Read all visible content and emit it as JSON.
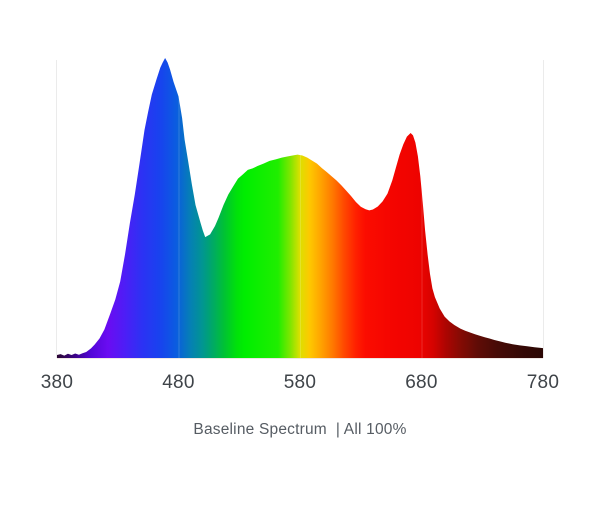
{
  "chart_data": {
    "type": "area",
    "title": "",
    "caption": "Baseline Spectrum  | All 100%",
    "xlabel": "",
    "ylabel": "",
    "x_min": 380,
    "x_max": 780,
    "x_ticks": [
      "380",
      "480",
      "580",
      "680",
      "780"
    ],
    "y_axis_visible": false,
    "grid": "faint vertical lines at interior ticks",
    "series": [
      {
        "name": "Baseline Spectrum All 100%",
        "unit": "relative intensity (0-1), x = wavelength nm",
        "points": [
          [
            380,
            0.01
          ],
          [
            383,
            0.013
          ],
          [
            386,
            0.008
          ],
          [
            389,
            0.014
          ],
          [
            392,
            0.01
          ],
          [
            395,
            0.015
          ],
          [
            398,
            0.011
          ],
          [
            401,
            0.016
          ],
          [
            404,
            0.02
          ],
          [
            408,
            0.032
          ],
          [
            411,
            0.045
          ],
          [
            415,
            0.065
          ],
          [
            419,
            0.095
          ],
          [
            424,
            0.15
          ],
          [
            428,
            0.195
          ],
          [
            432,
            0.255
          ],
          [
            436,
            0.345
          ],
          [
            440,
            0.45
          ],
          [
            444,
            0.545
          ],
          [
            448,
            0.65
          ],
          [
            452,
            0.76
          ],
          [
            455,
            0.82
          ],
          [
            458,
            0.878
          ],
          [
            462,
            0.93
          ],
          [
            465,
            0.968
          ],
          [
            467,
            0.985
          ],
          [
            469,
            1.0
          ],
          [
            471,
            0.985
          ],
          [
            473,
            0.962
          ],
          [
            476,
            0.92
          ],
          [
            480,
            0.872
          ],
          [
            483,
            0.8
          ],
          [
            485,
            0.728
          ],
          [
            488,
            0.655
          ],
          [
            491,
            0.578
          ],
          [
            494,
            0.51
          ],
          [
            498,
            0.452
          ],
          [
            500,
            0.425
          ],
          [
            502,
            0.403
          ],
          [
            506,
            0.412
          ],
          [
            510,
            0.44
          ],
          [
            513,
            0.468
          ],
          [
            517,
            0.51
          ],
          [
            521,
            0.545
          ],
          [
            525,
            0.572
          ],
          [
            529,
            0.598
          ],
          [
            533,
            0.612
          ],
          [
            537,
            0.627
          ],
          [
            541,
            0.632
          ],
          [
            545,
            0.64
          ],
          [
            550,
            0.648
          ],
          [
            555,
            0.657
          ],
          [
            560,
            0.662
          ],
          [
            565,
            0.668
          ],
          [
            570,
            0.672
          ],
          [
            575,
            0.676
          ],
          [
            578,
            0.678
          ],
          [
            582,
            0.675
          ],
          [
            586,
            0.668
          ],
          [
            590,
            0.658
          ],
          [
            594,
            0.648
          ],
          [
            598,
            0.633
          ],
          [
            602,
            0.62
          ],
          [
            606,
            0.606
          ],
          [
            610,
            0.592
          ],
          [
            614,
            0.576
          ],
          [
            618,
            0.558
          ],
          [
            622,
            0.54
          ],
          [
            626,
            0.52
          ],
          [
            630,
            0.504
          ],
          [
            634,
            0.496
          ],
          [
            637,
            0.492
          ],
          [
            640,
            0.495
          ],
          [
            644,
            0.505
          ],
          [
            648,
            0.522
          ],
          [
            652,
            0.548
          ],
          [
            656,
            0.592
          ],
          [
            659,
            0.636
          ],
          [
            662,
            0.678
          ],
          [
            665,
            0.712
          ],
          [
            668,
            0.738
          ],
          [
            671,
            0.75
          ],
          [
            673,
            0.742
          ],
          [
            675,
            0.718
          ],
          [
            677,
            0.672
          ],
          [
            679,
            0.606
          ],
          [
            681,
            0.52
          ],
          [
            683,
            0.425
          ],
          [
            685,
            0.345
          ],
          [
            687,
            0.28
          ],
          [
            689,
            0.232
          ],
          [
            691,
            0.203
          ],
          [
            695,
            0.165
          ],
          [
            699,
            0.138
          ],
          [
            703,
            0.122
          ],
          [
            707,
            0.11
          ],
          [
            712,
            0.098
          ],
          [
            716,
            0.091
          ],
          [
            720,
            0.085
          ],
          [
            724,
            0.079
          ],
          [
            728,
            0.074
          ],
          [
            732,
            0.069
          ],
          [
            736,
            0.065
          ],
          [
            740,
            0.06
          ],
          [
            745,
            0.055
          ],
          [
            749,
            0.051
          ],
          [
            755,
            0.046
          ],
          [
            761,
            0.042
          ],
          [
            767,
            0.039
          ],
          [
            773,
            0.036
          ],
          [
            780,
            0.033
          ]
        ]
      }
    ],
    "spectral_gradient": [
      {
        "wavelength": 380,
        "color": "#2b0733"
      },
      {
        "wavelength": 395,
        "color": "#3a0288"
      },
      {
        "wavelength": 408,
        "color": "#5306d8"
      },
      {
        "wavelength": 422,
        "color": "#6a0cf2"
      },
      {
        "wavelength": 436,
        "color": "#4d1ef6"
      },
      {
        "wavelength": 450,
        "color": "#2c32f4"
      },
      {
        "wavelength": 465,
        "color": "#1843ee"
      },
      {
        "wavelength": 478,
        "color": "#0b5ce0"
      },
      {
        "wavelength": 490,
        "color": "#0580b4"
      },
      {
        "wavelength": 500,
        "color": "#019690"
      },
      {
        "wavelength": 508,
        "color": "#00a966"
      },
      {
        "wavelength": 518,
        "color": "#00c332"
      },
      {
        "wavelength": 528,
        "color": "#00e20a"
      },
      {
        "wavelength": 535,
        "color": "#00ee00"
      },
      {
        "wavelength": 562,
        "color": "#20ee00"
      },
      {
        "wavelength": 572,
        "color": "#7fe600"
      },
      {
        "wavelength": 580,
        "color": "#dce000"
      },
      {
        "wavelength": 588,
        "color": "#fec800"
      },
      {
        "wavelength": 597,
        "color": "#ffa400"
      },
      {
        "wavelength": 607,
        "color": "#ff7800"
      },
      {
        "wavelength": 616,
        "color": "#ff4a00"
      },
      {
        "wavelength": 626,
        "color": "#ff2000"
      },
      {
        "wavelength": 634,
        "color": "#fb0c00"
      },
      {
        "wavelength": 655,
        "color": "#f50500"
      },
      {
        "wavelength": 678,
        "color": "#ee0300"
      },
      {
        "wavelength": 690,
        "color": "#d40300"
      },
      {
        "wavelength": 700,
        "color": "#ac0502"
      },
      {
        "wavelength": 712,
        "color": "#850b04"
      },
      {
        "wavelength": 726,
        "color": "#600c06"
      },
      {
        "wavelength": 742,
        "color": "#470b06"
      },
      {
        "wavelength": 760,
        "color": "#370905"
      },
      {
        "wavelength": 780,
        "color": "#2b0704"
      }
    ],
    "axis_colors": {
      "tick_label": "#3f4449",
      "caption": "#565c63",
      "baseline_line": "#efe6e3",
      "edge_line": "#ebebeb",
      "interior_gridline": "rgba(255,255,255,0.16)"
    }
  }
}
